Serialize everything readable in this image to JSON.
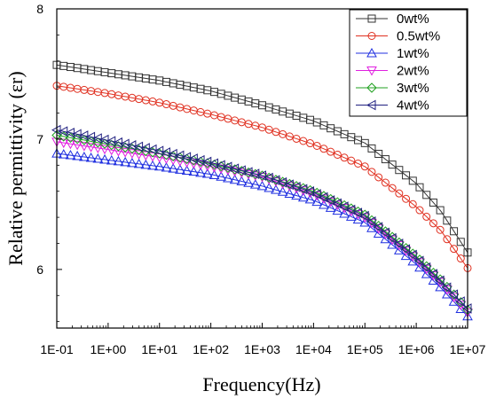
{
  "chart_data": {
    "type": "scatter",
    "xlabel": "Frequency(Hz)",
    "ylabel": "Relative permittivity (εr)",
    "x_scale": "log",
    "xlim": [
      0.1,
      10000000
    ],
    "ylim": [
      5.55,
      8.0
    ],
    "x_ticks": [
      {
        "value": 0.1,
        "label": "1E-01"
      },
      {
        "value": 1,
        "label": "1E+00"
      },
      {
        "value": 10,
        "label": "1E+01"
      },
      {
        "value": 100,
        "label": "1E+02"
      },
      {
        "value": 1000,
        "label": "1E+03"
      },
      {
        "value": 10000,
        "label": "1E+04"
      },
      {
        "value": 100000,
        "label": "1E+05"
      },
      {
        "value": 1000000,
        "label": "1E+06"
      },
      {
        "value": 10000000,
        "label": "1E+07"
      }
    ],
    "y_ticks": [
      {
        "value": 6,
        "label": "6"
      },
      {
        "value": 7,
        "label": "7"
      },
      {
        "value": 8,
        "label": "8"
      }
    ],
    "grid": false,
    "legend_position": "top-right",
    "series": [
      {
        "name": "0wt%",
        "marker": "square",
        "color": "#333333",
        "x": [
          0.1,
          1,
          10,
          100,
          1000,
          10000,
          100000,
          1000000,
          3000000,
          10000000
        ],
        "y": [
          7.57,
          7.51,
          7.45,
          7.37,
          7.26,
          7.14,
          6.97,
          6.66,
          6.45,
          6.13
        ]
      },
      {
        "name": "0.5wt%",
        "marker": "circle",
        "color": "#e03020",
        "x": [
          0.1,
          1,
          10,
          100,
          1000,
          10000,
          100000,
          1000000,
          3000000,
          10000000
        ],
        "y": [
          7.41,
          7.35,
          7.28,
          7.19,
          7.09,
          6.96,
          6.79,
          6.48,
          6.3,
          6.01
        ]
      },
      {
        "name": "1wt%",
        "marker": "triangle-up",
        "color": "#2030e0",
        "x": [
          0.1,
          1,
          10,
          100,
          1000,
          10000,
          100000,
          1000000,
          3000000,
          10000000
        ],
        "y": [
          6.89,
          6.84,
          6.79,
          6.73,
          6.64,
          6.53,
          6.36,
          6.04,
          5.86,
          5.64
        ]
      },
      {
        "name": "2wt%",
        "marker": "triangle-down",
        "color": "#e020e0",
        "x": [
          0.1,
          1,
          10,
          100,
          1000,
          10000,
          100000,
          1000000,
          3000000,
          10000000
        ],
        "y": [
          6.98,
          6.92,
          6.86,
          6.79,
          6.71,
          6.58,
          6.4,
          6.08,
          5.9,
          5.67
        ]
      },
      {
        "name": "3wt%",
        "marker": "diamond",
        "color": "#20a020",
        "x": [
          0.1,
          1,
          10,
          100,
          1000,
          10000,
          100000,
          1000000,
          3000000,
          10000000
        ],
        "y": [
          7.03,
          6.96,
          6.89,
          6.81,
          6.72,
          6.6,
          6.42,
          6.1,
          5.92,
          5.69
        ]
      },
      {
        "name": "4wt%",
        "marker": "triangle-left",
        "color": "#202080",
        "x": [
          0.1,
          1,
          10,
          100,
          1000,
          10000,
          100000,
          1000000,
          3000000,
          10000000
        ],
        "y": [
          7.07,
          6.99,
          6.91,
          6.82,
          6.72,
          6.59,
          6.41,
          6.09,
          5.91,
          5.7
        ]
      }
    ]
  }
}
